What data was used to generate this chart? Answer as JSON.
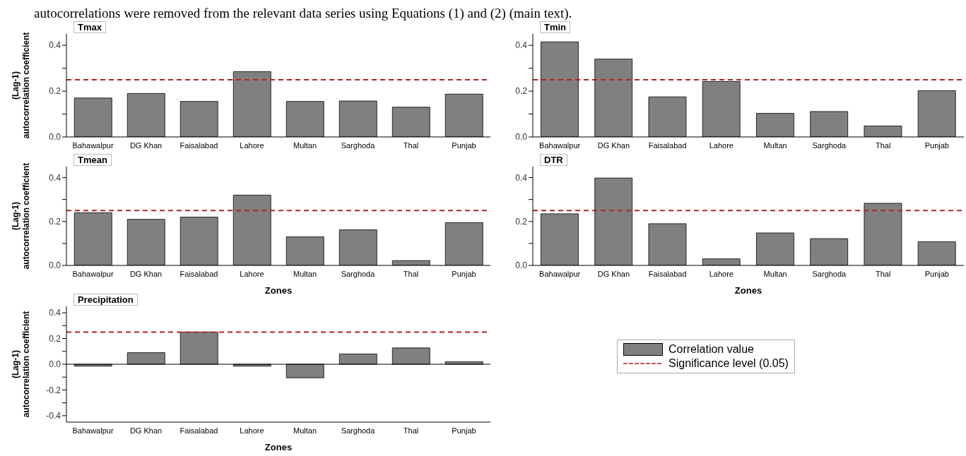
{
  "chart_data": [
    {
      "type": "bar",
      "title": "Tmax",
      "ylabel": "(Lag-1) autocorrelation coefficient",
      "annotations": [
        "autocorrelations were removed from the relevant data series using Equations (1) and (2) (main text)."
      ],
      "categories": [
        "Bahawalpur",
        "DG Khan",
        "Faisalabad",
        "Lahore",
        "Multan",
        "Sarghoda",
        "Thal",
        "Punjab"
      ],
      "series": [
        {
          "color": "#808080",
          "values": [
            0.17,
            0.19,
            0.155,
            0.285,
            0.155,
            0.157,
            0.13,
            0.187
          ]
        }
      ],
      "ylim": [
        0,
        0.45
      ],
      "yticks": [
        {
          "value": 0,
          "label": "0.0"
        },
        {
          "value": 0.1,
          "label": null
        },
        {
          "value": 0.2,
          "label": "0.2"
        },
        {
          "value": 0.3,
          "label": null
        },
        {
          "value": 0.4,
          "label": "0.4"
        }
      ],
      "ref_lines": [
        {
          "axis": "y",
          "value": 0.25,
          "color": "#b22222",
          "line_style": "dashed"
        }
      ]
    },
    {
      "type": "bar",
      "title": "Tmin",
      "categories": [
        "Bahawalpur",
        "DG Khan",
        "Faisalabad",
        "Lahore",
        "Multan",
        "Sarghoda",
        "Thal",
        "Punjab"
      ],
      "series": [
        {
          "color": "#808080",
          "values": [
            0.415,
            0.34,
            0.175,
            0.242,
            0.103,
            0.111,
            0.048,
            0.202
          ]
        }
      ],
      "ylim": [
        0,
        0.45
      ],
      "yticks": [
        {
          "value": 0,
          "label": "0.0"
        },
        {
          "value": 0.1,
          "label": null
        },
        {
          "value": 0.2,
          "label": "0.2"
        },
        {
          "value": 0.3,
          "label": null
        },
        {
          "value": 0.4,
          "label": "0.4"
        }
      ],
      "ref_lines": [
        {
          "axis": "y",
          "value": 0.25,
          "color": "#b22222",
          "line_style": "dashed"
        }
      ]
    },
    {
      "type": "bar",
      "title": "Tmean",
      "xlabel": "Zones",
      "ylabel": "(Lag-1) autocorrelation coefficient",
      "categories": [
        "Bahawalpur",
        "DG Khan",
        "Faisalabad",
        "Lahore",
        "Multan",
        "Sarghoda",
        "Thal",
        "Punjab"
      ],
      "series": [
        {
          "color": "#808080",
          "values": [
            0.24,
            0.21,
            0.22,
            0.32,
            0.13,
            0.162,
            0.022,
            0.195
          ]
        }
      ],
      "ylim": [
        0,
        0.45
      ],
      "yticks": [
        {
          "value": 0,
          "label": "0.0"
        },
        {
          "value": 0.1,
          "label": null
        },
        {
          "value": 0.2,
          "label": "0.2"
        },
        {
          "value": 0.3,
          "label": null
        },
        {
          "value": 0.4,
          "label": "0.4"
        }
      ],
      "ref_lines": [
        {
          "axis": "y",
          "value": 0.25,
          "color": "#b22222",
          "line_style": "dashed"
        }
      ]
    },
    {
      "type": "bar",
      "title": "DTR",
      "xlabel": "Zones",
      "categories": [
        "Bahawalpur",
        "DG Khan",
        "Faisalabad",
        "Lahore",
        "Multan",
        "Sarghoda",
        "Thal",
        "Punjab"
      ],
      "series": [
        {
          "color": "#808080",
          "values": [
            0.235,
            0.398,
            0.19,
            0.03,
            0.148,
            0.122,
            0.283,
            0.108
          ]
        }
      ],
      "ylim": [
        0,
        0.45
      ],
      "yticks": [
        {
          "value": 0,
          "label": "0.0"
        },
        {
          "value": 0.1,
          "label": null
        },
        {
          "value": 0.2,
          "label": "0.2"
        },
        {
          "value": 0.3,
          "label": null
        },
        {
          "value": 0.4,
          "label": "0.4"
        }
      ],
      "ref_lines": [
        {
          "axis": "y",
          "value": 0.25,
          "color": "#b22222",
          "line_style": "dashed"
        }
      ]
    },
    {
      "type": "bar",
      "title": "Precipitation",
      "xlabel": "Zones",
      "ylabel": "(Lag-1) autocorrelation coefficient",
      "categories": [
        "Bahawalpur",
        "DG Khan",
        "Faisalabad",
        "Lahore",
        "Multan",
        "Sarghoda",
        "Thal",
        "Punjab"
      ],
      "series": [
        {
          "name": "Correlation value",
          "color": "#808080",
          "values": [
            -0.015,
            0.09,
            0.25,
            -0.015,
            -0.105,
            0.08,
            0.127,
            0.02
          ]
        }
      ],
      "ylim": [
        -0.45,
        0.45
      ],
      "yticks": [
        {
          "value": -0.4,
          "label": "-0.4"
        },
        {
          "value": -0.3,
          "label": null
        },
        {
          "value": -0.2,
          "label": "-0.2"
        },
        {
          "value": -0.1,
          "label": null
        },
        {
          "value": 0,
          "label": "0.0"
        },
        {
          "value": 0.1,
          "label": null
        },
        {
          "value": 0.2,
          "label": "0.2"
        },
        {
          "value": 0.3,
          "label": null
        },
        {
          "value": 0.4,
          "label": "0.4"
        }
      ],
      "ref_lines": [
        {
          "axis": "y",
          "value": 0.25,
          "label": "Significance level (0.05)",
          "color": "#b22222",
          "line_style": "dashed"
        }
      ],
      "legend": "right"
    }
  ]
}
